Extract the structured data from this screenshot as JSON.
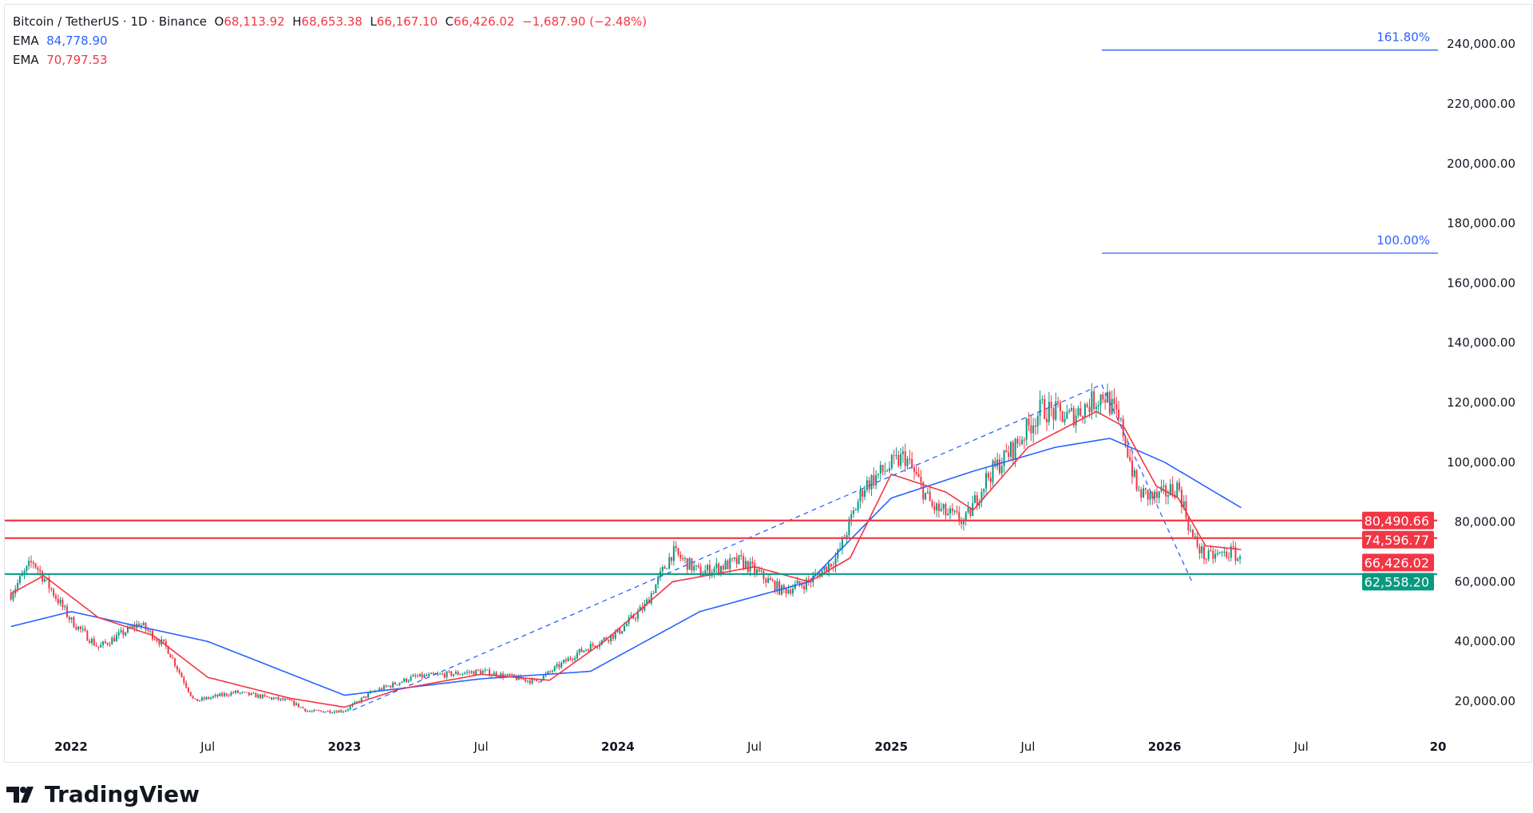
{
  "header": {
    "symbol": "Bitcoin / TetherUS · 1D · Binance",
    "open_label": "O",
    "open": "68,113.92",
    "high_label": "H",
    "high": "68,653.38",
    "low_label": "L",
    "low": "66,167.10",
    "close_label": "C",
    "close": "66,426.02",
    "change": "−1,687.90 (−2.48%)"
  },
  "indicators": [
    {
      "name": "EMA",
      "value": "84,778.90",
      "color": "#2962ff"
    },
    {
      "name": "EMA",
      "value": "70,797.53",
      "color": "#f23645"
    }
  ],
  "brand": "TradingView",
  "chart_data": {
    "type": "candlestick",
    "ylim": [
      10000,
      250000
    ],
    "y_ticks": [
      "20,000.00",
      "40,000.00",
      "60,000.00",
      "80,000.00",
      "100,000.00",
      "120,000.00",
      "140,000.00",
      "160,000.00",
      "180,000.00",
      "200,000.00",
      "220,000.00",
      "240,000.00"
    ],
    "y_tick_values": [
      20000,
      40000,
      60000,
      80000,
      100000,
      120000,
      140000,
      160000,
      180000,
      200000,
      220000,
      240000
    ],
    "x_ticks": [
      {
        "t": 2022,
        "label": "2022",
        "bold": true
      },
      {
        "t": 2022.5,
        "label": "Jul"
      },
      {
        "t": 2023,
        "label": "2023",
        "bold": true
      },
      {
        "t": 2023.5,
        "label": "Jul"
      },
      {
        "t": 2024,
        "label": "2024",
        "bold": true
      },
      {
        "t": 2024.5,
        "label": "Jul"
      },
      {
        "t": 2025,
        "label": "2025",
        "bold": true
      },
      {
        "t": 2025.5,
        "label": "Jul"
      },
      {
        "t": 2026,
        "label": "2026",
        "bold": true
      },
      {
        "t": 2026.5,
        "label": "Jul"
      },
      {
        "t": 2027,
        "label": "20",
        "bold": true
      }
    ],
    "price_path": [
      [
        2021.78,
        56000
      ],
      [
        2021.86,
        67000
      ],
      [
        2022.0,
        47000
      ],
      [
        2022.1,
        38000
      ],
      [
        2022.25,
        46000
      ],
      [
        2022.35,
        38000
      ],
      [
        2022.45,
        20000
      ],
      [
        2022.6,
        23000
      ],
      [
        2022.8,
        20000
      ],
      [
        2022.87,
        16500
      ],
      [
        2023.0,
        16800
      ],
      [
        2023.1,
        23000
      ],
      [
        2023.25,
        28000
      ],
      [
        2023.5,
        30000
      ],
      [
        2023.7,
        26500
      ],
      [
        2023.85,
        36000
      ],
      [
        2024.0,
        43000
      ],
      [
        2024.1,
        52000
      ],
      [
        2024.2,
        70000
      ],
      [
        2024.3,
        63000
      ],
      [
        2024.45,
        67000
      ],
      [
        2024.6,
        57000
      ],
      [
        2024.7,
        60000
      ],
      [
        2024.8,
        68000
      ],
      [
        2024.9,
        92000
      ],
      [
        2024.97,
        97000
      ],
      [
        2025.05,
        102000
      ],
      [
        2025.15,
        85000
      ],
      [
        2025.27,
        80000
      ],
      [
        2025.35,
        95000
      ],
      [
        2025.45,
        105000
      ],
      [
        2025.55,
        118000
      ],
      [
        2025.65,
        115000
      ],
      [
        2025.78,
        123000
      ],
      [
        2025.85,
        110000
      ],
      [
        2025.9,
        90000
      ],
      [
        2025.97,
        88000
      ],
      [
        2026.05,
        92000
      ],
      [
        2026.1,
        75000
      ],
      [
        2026.15,
        68000
      ],
      [
        2026.25,
        70000
      ],
      [
        2026.28,
        66426
      ]
    ],
    "ema_slow": [
      [
        2021.78,
        45000
      ],
      [
        2022.0,
        50000
      ],
      [
        2022.5,
        40000
      ],
      [
        2023.0,
        22000
      ],
      [
        2023.5,
        27500
      ],
      [
        2023.9,
        30000
      ],
      [
        2024.3,
        50000
      ],
      [
        2024.7,
        60000
      ],
      [
        2025.0,
        88000
      ],
      [
        2025.3,
        97000
      ],
      [
        2025.6,
        105000
      ],
      [
        2025.8,
        108000
      ],
      [
        2026.0,
        100000
      ],
      [
        2026.28,
        84779
      ]
    ],
    "ema_fast": [
      [
        2021.78,
        56000
      ],
      [
        2021.9,
        62000
      ],
      [
        2022.1,
        48000
      ],
      [
        2022.3,
        42000
      ],
      [
        2022.5,
        28000
      ],
      [
        2022.8,
        21000
      ],
      [
        2023.0,
        18000
      ],
      [
        2023.2,
        24000
      ],
      [
        2023.5,
        29000
      ],
      [
        2023.75,
        27000
      ],
      [
        2023.95,
        40000
      ],
      [
        2024.2,
        60000
      ],
      [
        2024.5,
        65000
      ],
      [
        2024.7,
        60000
      ],
      [
        2024.85,
        68000
      ],
      [
        2025.0,
        96000
      ],
      [
        2025.2,
        90000
      ],
      [
        2025.3,
        84000
      ],
      [
        2025.5,
        105000
      ],
      [
        2025.75,
        117000
      ],
      [
        2025.85,
        112000
      ],
      [
        2025.97,
        92000
      ],
      [
        2026.05,
        88000
      ],
      [
        2026.15,
        72000
      ],
      [
        2026.28,
        70798
      ]
    ],
    "horizontal_levels": [
      {
        "value": 80490.66,
        "label": "80,490.66",
        "color": "#f23645"
      },
      {
        "value": 74596.77,
        "label": "74,596.77",
        "color": "#f23645"
      },
      {
        "value": 62558.2,
        "label": "62,558.20",
        "color": "#089981"
      }
    ],
    "last_price": {
      "value": 66426.02,
      "label": "66,426.02",
      "color": "#f23645"
    },
    "fib_levels": [
      {
        "value": 238000,
        "label": "161.80%"
      },
      {
        "value": 170000,
        "label": "100.00%"
      }
    ],
    "trend_dashed": [
      [
        2023.03,
        17000
      ],
      [
        2025.77,
        126000
      ],
      [
        2026.1,
        60000
      ]
    ],
    "colors": {
      "up": "#089981",
      "down": "#f23645",
      "fib": "#2962ff",
      "ema_slow": "#2962ff",
      "ema_fast": "#f23645"
    }
  }
}
